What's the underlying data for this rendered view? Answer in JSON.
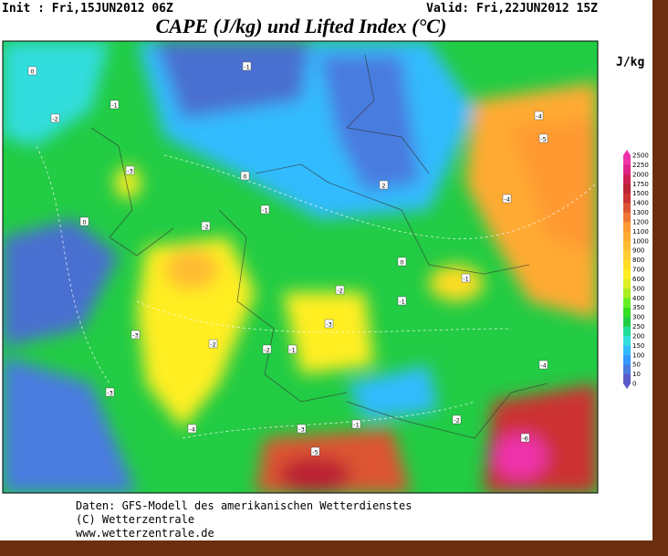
{
  "header": {
    "init": "Init : Fri,15JUN2012 06Z",
    "valid": "Valid: Fri,22JUN2012 15Z",
    "title": "CAPE (J/kg) und Lifted Index (°C)"
  },
  "unit": "J/kg",
  "colorbar": {
    "ticks": [
      0,
      10,
      50,
      100,
      150,
      200,
      250,
      300,
      350,
      400,
      500,
      600,
      700,
      800,
      900,
      1000,
      1100,
      1200,
      1300,
      1400,
      1500,
      1750,
      2000,
      2250,
      2500
    ],
    "colors": [
      "#5a5ac8",
      "#4a7bdf",
      "#3399ff",
      "#33bbff",
      "#33dddd",
      "#22dd99",
      "#22cc44",
      "#33dd22",
      "#66ee22",
      "#aaee22",
      "#ddee22",
      "#ffee22",
      "#ffdd22",
      "#ffcc33",
      "#ffbb33",
      "#ffaa33",
      "#ff9933",
      "#ee7733",
      "#dd5533",
      "#cc3333",
      "#bb2233",
      "#cc2255",
      "#dd2288",
      "#ee33aa"
    ]
  },
  "map_labels": [
    "0",
    "-1",
    "-2",
    "-1",
    "-3",
    "0",
    "0",
    "-1",
    "-2",
    "-3",
    "-4",
    "-2",
    "-3",
    "-2",
    "-1",
    "-3",
    "-4",
    "-4",
    "-5",
    "-2",
    "-1",
    "-4",
    "-6",
    "-5",
    "-3",
    "-2",
    "-1",
    "2",
    "0",
    "-1"
  ],
  "footer": [
    "Daten: GFS-Modell des amerikanischen Wetterdienstes",
    "(C) Wetterzentrale",
    "www.wetterzentrale.de"
  ]
}
